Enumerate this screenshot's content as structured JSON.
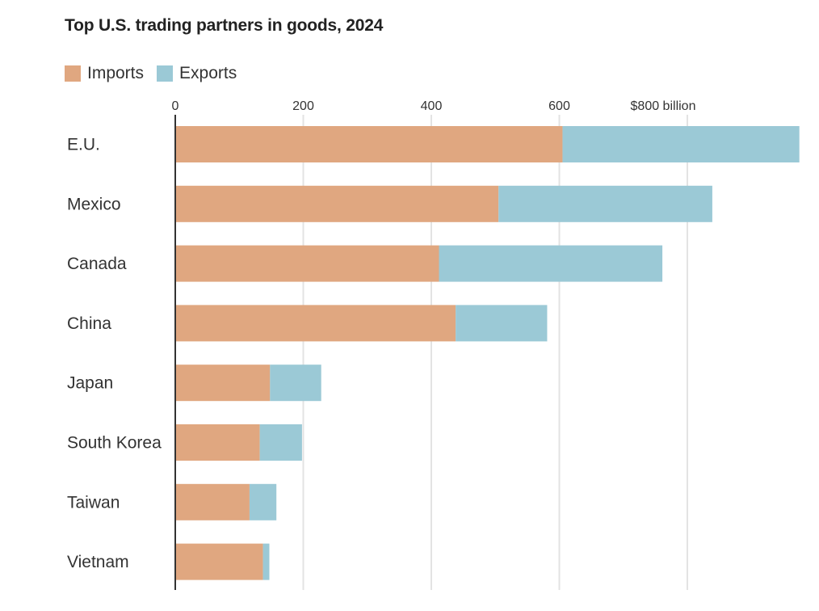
{
  "chart_data": {
    "type": "bar",
    "orientation": "horizontal",
    "stacked": true,
    "title": "Top U.S. trading partners in goods, 2024",
    "categories": [
      "E.U.",
      "Mexico",
      "Canada",
      "China",
      "Japan",
      "South Korea",
      "Taiwan",
      "Vietnam"
    ],
    "series": [
      {
        "name": "Imports",
        "color": "#e0a780",
        "values": [
          605,
          505,
          412,
          438,
          148,
          132,
          116,
          137
        ]
      },
      {
        "name": "Exports",
        "color": "#9bc9d6",
        "values": [
          370,
          334,
          349,
          143,
          80,
          66,
          42,
          10
        ]
      }
    ],
    "xlim": [
      0,
      975
    ],
    "ticks": [
      0,
      200,
      400,
      600,
      800
    ],
    "tick_labels": [
      "0",
      "200",
      "400",
      "600",
      "$800 billion"
    ],
    "grid": true,
    "legend_position": "top-left"
  }
}
